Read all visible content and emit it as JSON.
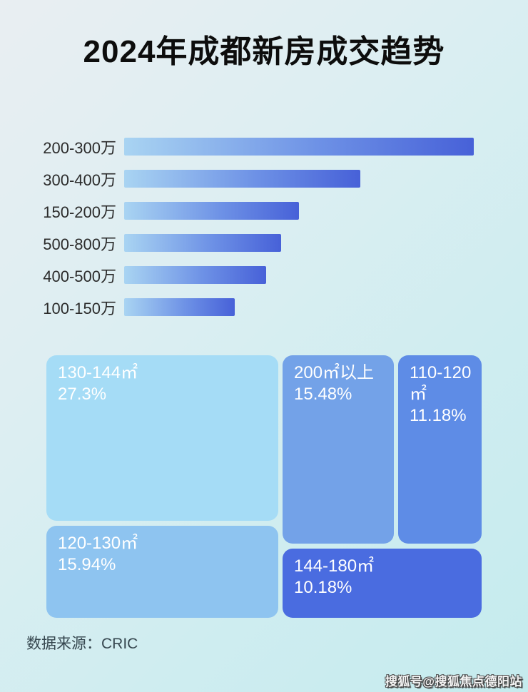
{
  "title": "2024年成都新房成交趋势",
  "source_label": "数据来源：CRIC",
  "watermark": "搜狐号@搜狐焦点德阳站",
  "colors": {
    "bar_gradient": [
      "#a9d4f2",
      "#6e92e6",
      "#4761d8"
    ],
    "background_top": "#e9eef2",
    "background_bottom": "#c5ebee",
    "title_text": "#0d0d0d",
    "treemap_text": "#ffffff"
  },
  "chart_data": [
    {
      "type": "bar",
      "orientation": "horizontal",
      "note": "price-segment transaction ranking, no numeric labels shown; values are bar lengths as % of longest bar (estimated from pixels)",
      "categories": [
        "200-300万",
        "300-400万",
        "150-200万",
        "500-800万",
        "400-500万",
        "100-150万"
      ],
      "values_pct_of_max": [
        100,
        67.6,
        50.0,
        44.9,
        40.6,
        31.6
      ],
      "value_labels_shown": false,
      "grid": false,
      "legend": false
    },
    {
      "type": "treemap",
      "note": "unit-area mix of new-home transactions",
      "items": [
        {
          "label": "130-144㎡",
          "value_pct": 27.3,
          "display": "27.3%",
          "color": "#a5dcf6"
        },
        {
          "label": "120-130㎡",
          "value_pct": 15.94,
          "display": "15.94%",
          "color": "#8ec4f0"
        },
        {
          "label": "200㎡以上",
          "value_pct": 15.48,
          "display": "15.48%",
          "color": "#73a2e8"
        },
        {
          "label": "110-120㎡",
          "value_pct": 11.18,
          "display": "11.18%",
          "color": "#5e8ce6"
        },
        {
          "label": "144-180㎡",
          "value_pct": 10.18,
          "display": "10.18%",
          "color": "#4a6ce0"
        }
      ]
    }
  ]
}
